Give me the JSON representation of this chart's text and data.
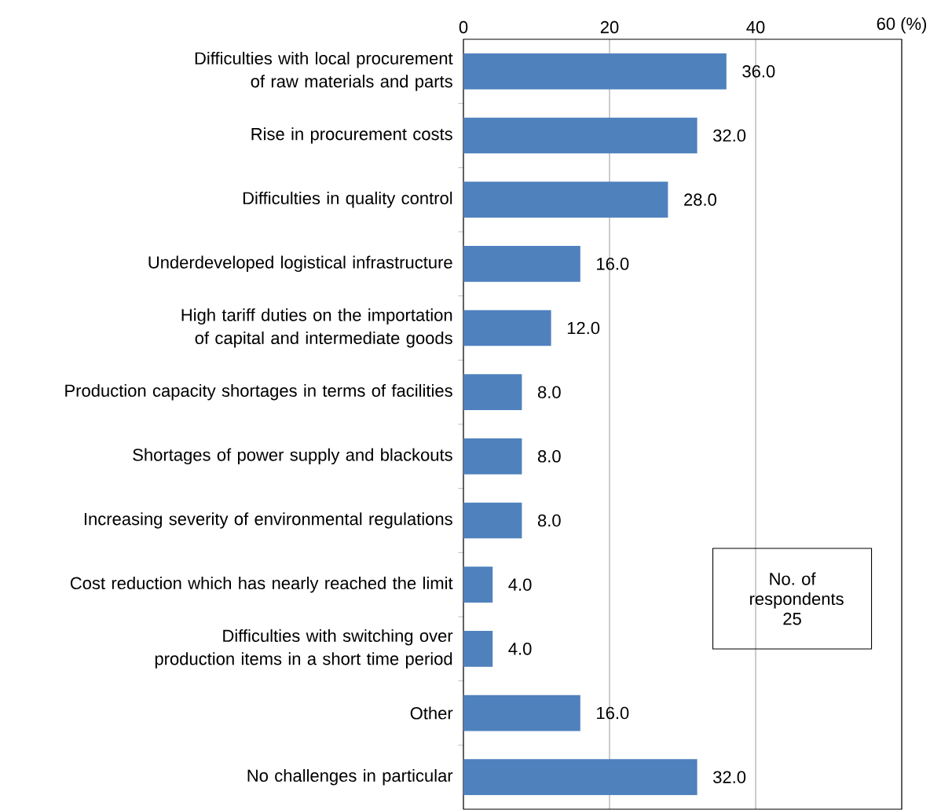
{
  "chart_data": {
    "type": "bar",
    "orientation": "horizontal",
    "categories": [
      "Difficulties with local procurement of raw materials and parts",
      "Rise in procurement costs",
      "Difficulties in quality control",
      "Underdeveloped logistical infrastructure",
      "High tariff duties on the importation of capital and intermediate goods",
      "Production capacity shortages in terms of facilities",
      "Shortages of power supply and blackouts",
      "Increasing severity of environmental regulations",
      "Cost reduction which has nearly reached the limit",
      "Difficulties with switching over production items in a short time period",
      "Other",
      "No challenges in particular"
    ],
    "values": [
      36.0,
      32.0,
      28.0,
      16.0,
      12.0,
      8.0,
      8.0,
      8.0,
      4.0,
      4.0,
      16.0,
      32.0
    ],
    "value_labels": [
      "36.0",
      "32.0",
      "28.0",
      "16.0",
      "12.0",
      "8.0",
      "8.0",
      "8.0",
      "4.0",
      "4.0",
      "16.0",
      "32.0"
    ],
    "color": "#4f81bd",
    "xlim": [
      0,
      60
    ],
    "xticks": [
      0,
      20,
      40,
      {
        "value": 60,
        "label": "60 (%)"
      }
    ],
    "grid": "x",
    "annotations": [
      "No. of respondents 25"
    ]
  }
}
